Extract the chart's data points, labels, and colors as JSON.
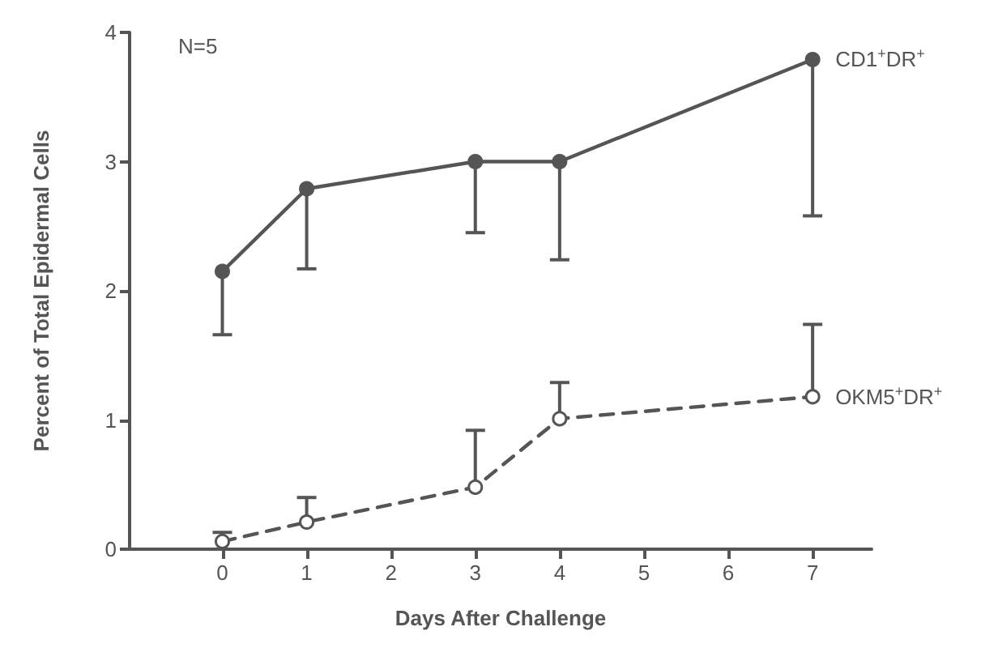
{
  "chart_data": {
    "type": "line",
    "xlabel": "Days After Challenge",
    "ylabel": "Percent of Total Epidermal Cells",
    "annotations": [
      "N=5"
    ],
    "x": [
      0,
      1,
      3,
      4,
      7
    ],
    "xlim": [
      -1.1,
      7.7
    ],
    "xticks": [
      0,
      1,
      2,
      3,
      4,
      5,
      6,
      7
    ],
    "ylim": [
      0,
      4
    ],
    "yticks": [
      0,
      1,
      2,
      3,
      4
    ],
    "grid": false,
    "legend": false,
    "marker": "circle",
    "series": [
      {
        "name": "CD1$^{+}$DR$^{+}$",
        "color": "#555555",
        "line_style": "solid",
        "values": [
          2.15,
          2.79,
          3.0,
          3.0,
          3.79
        ],
        "errors": [
          [
            1.66,
            2.15
          ],
          [
            2.17,
            2.79
          ],
          [
            2.45,
            3.0
          ],
          [
            2.24,
            3.0
          ],
          [
            2.58,
            3.79
          ]
        ]
      },
      {
        "name": "OKM5$^{+}$DR$^{+}$",
        "color": "#555555",
        "line_style": "dashed",
        "values": [
          0.06,
          0.21,
          0.48,
          1.01,
          1.18
        ],
        "errors": [
          [
            0.06,
            0.13
          ],
          [
            0.21,
            0.4
          ],
          [
            0.48,
            0.92
          ],
          [
            1.01,
            1.29
          ],
          [
            1.18,
            1.74
          ]
        ]
      }
    ]
  }
}
